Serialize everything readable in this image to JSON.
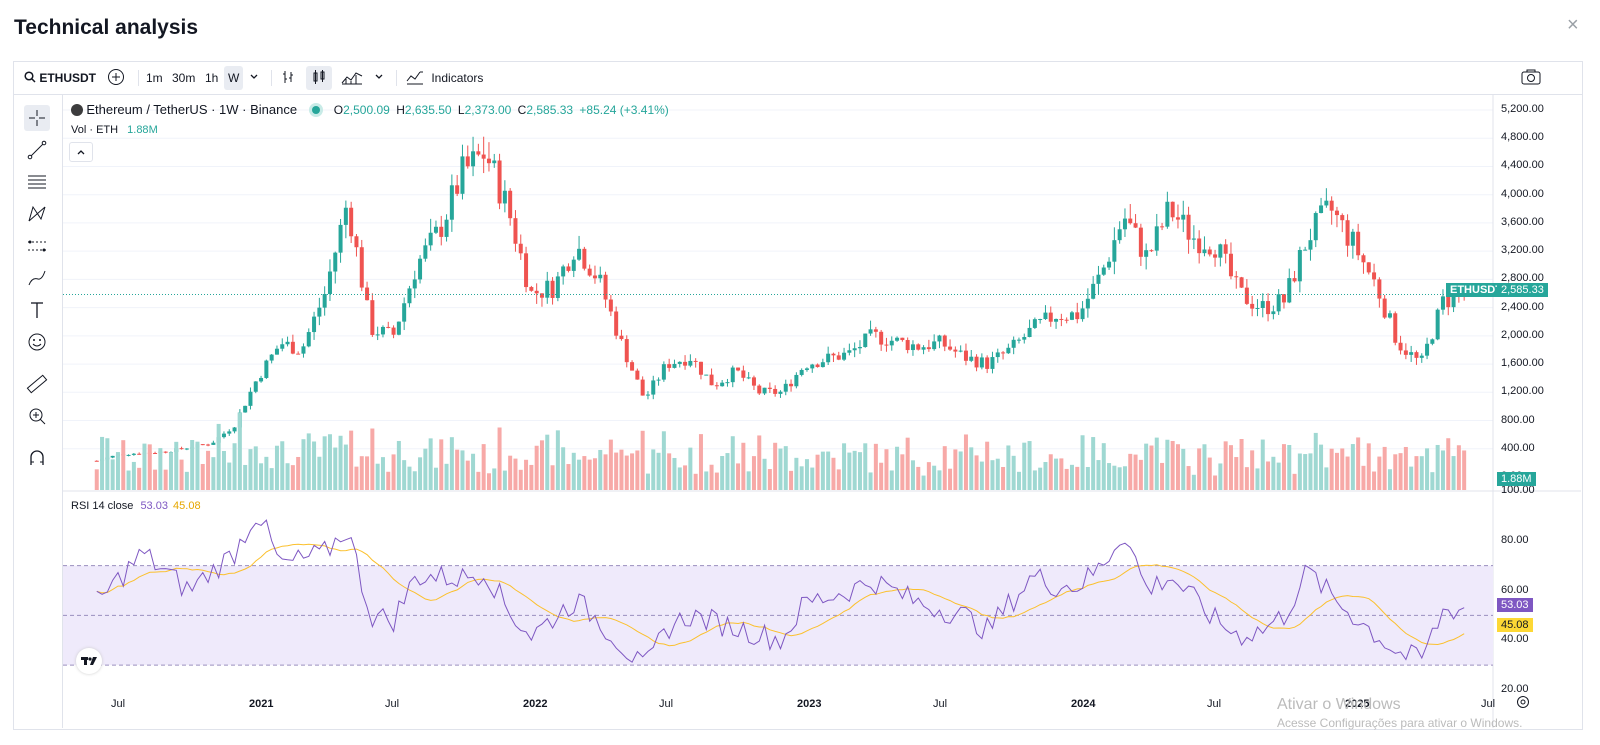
{
  "modal": {
    "title": "Technical analysis",
    "close_icon": "×"
  },
  "toolbar": {
    "symbol": "ETHUSDT",
    "intervals": [
      "1m",
      "30m",
      "1h",
      "W"
    ],
    "active_interval": "W",
    "indicators_label": "Indicators"
  },
  "legend": {
    "name": "Ethereum / TetherUS · 1W · Binance",
    "o_label": "O",
    "o": "2,500.09",
    "h_label": "H",
    "h": "2,635.50",
    "l_label": "L",
    "l": "2,373.00",
    "c_label": "C",
    "c": "2,585.33",
    "change": "+85.24 (+3.41%)",
    "vol_label": "Vol · ETH",
    "vol_value": "1.88",
    "vol_unit": "M",
    "rsi_label": "RSI 14 close",
    "rsi_value": "53.03",
    "rsi_ma": "45.08"
  },
  "price_axis": [
    "5,200.00",
    "4,800.00",
    "4,400.00",
    "4,000.00",
    "3,600.00",
    "3,200.00",
    "2,800.00",
    "2,400.00",
    "2,000.00",
    "1,600.00",
    "1,200.00",
    "800.00",
    "400.00",
    "0.00"
  ],
  "rsi_axis": [
    "100.00",
    "80.00",
    "60.00",
    "40.00",
    "20.00"
  ],
  "time_axis": [
    "Jul",
    "2021",
    "Jul",
    "2022",
    "Jul",
    "2023",
    "Jul",
    "2024",
    "Jul",
    "2025",
    "Jul"
  ],
  "labels": {
    "symbol_tag": "ETHUSDT",
    "last_price": "2,585.33",
    "volume_tag": "1.88M",
    "rsi_tag": "53.03",
    "rsi_ma_tag": "45.08"
  },
  "colors": {
    "up": "#26a69a",
    "down": "#ef5350",
    "rsi": "#7e57c2",
    "rsi_ma": "#fbc02d",
    "vol_up": "#9fd8d2",
    "vol_down": "#f7a9a7"
  },
  "watermark": {
    "line1": "Ativar o Windows",
    "line2": "Acesse Configurações para ativar o Windows."
  },
  "chart_data": {
    "type": "candlestick",
    "pair": "ETHUSDT",
    "interval": "1W",
    "price_ylim": [
      0,
      5200
    ],
    "rsi_ylim": [
      20,
      100
    ],
    "rsi_bands": [
      30,
      50,
      70
    ],
    "close_path": [
      [
        "2020-06",
        230
      ],
      [
        "2020-07",
        320
      ],
      [
        "2020-09",
        360
      ],
      [
        "2020-11",
        480
      ],
      [
        "2020-12",
        730
      ],
      [
        "2021-01",
        1400
      ],
      [
        "2021-02",
        1900
      ],
      [
        "2021-03",
        1800
      ],
      [
        "2021-04",
        2600
      ],
      [
        "2021-05",
        3900
      ],
      [
        "2021-06",
        2100
      ],
      [
        "2021-07",
        2000
      ],
      [
        "2021-08",
        3000
      ],
      [
        "2021-09",
        3500
      ],
      [
        "2021-10",
        4300
      ],
      [
        "2021-11",
        4600
      ],
      [
        "2021-12",
        3800
      ],
      [
        "2022-01",
        2600
      ],
      [
        "2022-02",
        2700
      ],
      [
        "2022-03",
        3300
      ],
      [
        "2022-04",
        2800
      ],
      [
        "2022-05",
        1900
      ],
      [
        "2022-06",
        1100
      ],
      [
        "2022-07",
        1600
      ],
      [
        "2022-08",
        1700
      ],
      [
        "2022-09",
        1300
      ],
      [
        "2022-10",
        1500
      ],
      [
        "2022-11",
        1200
      ],
      [
        "2022-12",
        1200
      ],
      [
        "2023-01",
        1600
      ],
      [
        "2023-03",
        1750
      ],
      [
        "2023-04",
        2000
      ],
      [
        "2023-06",
        1850
      ],
      [
        "2023-07",
        1900
      ],
      [
        "2023-08",
        1700
      ],
      [
        "2023-09",
        1600
      ],
      [
        "2023-10",
        1800
      ],
      [
        "2023-11",
        2100
      ],
      [
        "2023-12",
        2300
      ],
      [
        "2024-01",
        2300
      ],
      [
        "2024-02",
        2900
      ],
      [
        "2024-03",
        3700
      ],
      [
        "2024-04",
        3100
      ],
      [
        "2024-05",
        3800
      ],
      [
        "2024-06",
        3400
      ],
      [
        "2024-07",
        3300
      ],
      [
        "2024-08",
        2600
      ],
      [
        "2024-09",
        2400
      ],
      [
        "2024-10",
        2500
      ],
      [
        "2024-11",
        3400
      ],
      [
        "2024-12",
        3800
      ],
      [
        "2025-01",
        3300
      ],
      [
        "2025-02",
        2700
      ],
      [
        "2025-03",
        1900
      ],
      [
        "2025-04",
        1600
      ],
      [
        "2025-05",
        2500
      ],
      [
        "2025-06",
        2585
      ]
    ],
    "rsi_path": [
      [
        "2020-06",
        55
      ],
      [
        "2020-08",
        75
      ],
      [
        "2020-10",
        60
      ],
      [
        "2020-12",
        75
      ],
      [
        "2021-01",
        92
      ],
      [
        "2021-02",
        70
      ],
      [
        "2021-04",
        75
      ],
      [
        "2021-05",
        85
      ],
      [
        "2021-06",
        50
      ],
      [
        "2021-07",
        48
      ],
      [
        "2021-08",
        66
      ],
      [
        "2021-10",
        65
      ],
      [
        "2021-11",
        68
      ],
      [
        "2021-12",
        52
      ],
      [
        "2022-01",
        42
      ],
      [
        "2022-03",
        56
      ],
      [
        "2022-04",
        48
      ],
      [
        "2022-06",
        28
      ],
      [
        "2022-07",
        45
      ],
      [
        "2022-08",
        50
      ],
      [
        "2022-10",
        45
      ],
      [
        "2022-12",
        40
      ],
      [
        "2023-01",
        55
      ],
      [
        "2023-03",
        60
      ],
      [
        "2023-04",
        64
      ],
      [
        "2023-06",
        55
      ],
      [
        "2023-08",
        50
      ],
      [
        "2023-09",
        44
      ],
      [
        "2023-11",
        66
      ],
      [
        "2023-12",
        62
      ],
      [
        "2024-01",
        62
      ],
      [
        "2024-02",
        70
      ],
      [
        "2024-03",
        84
      ],
      [
        "2024-04",
        60
      ],
      [
        "2024-05",
        66
      ],
      [
        "2024-07",
        48
      ],
      [
        "2024-08",
        42
      ],
      [
        "2024-09",
        44
      ],
      [
        "2024-10",
        50
      ],
      [
        "2024-11",
        68
      ],
      [
        "2024-12",
        58
      ],
      [
        "2025-01",
        50
      ],
      [
        "2025-02",
        42
      ],
      [
        "2025-03",
        35
      ],
      [
        "2025-04",
        32
      ],
      [
        "2025-05",
        52
      ],
      [
        "2025-06",
        53
      ]
    ],
    "volume_last": "1.88M"
  }
}
